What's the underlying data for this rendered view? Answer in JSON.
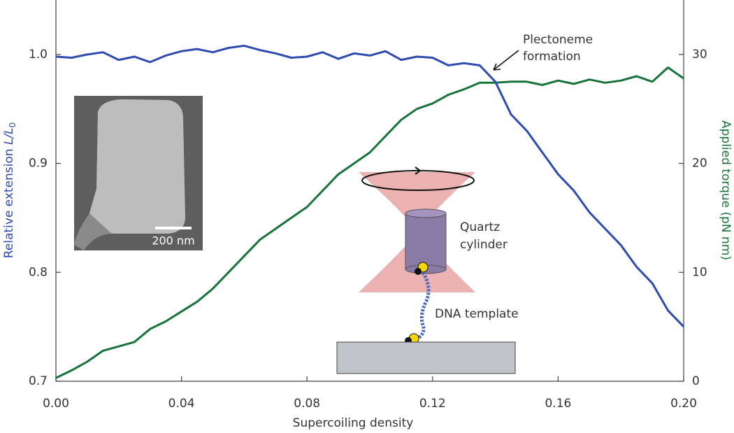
{
  "chart_data": {
    "type": "line",
    "x_label": "Supercoiling density",
    "y_label": "Relative extension ",
    "y_label_var": "L/L",
    "y_label_sub": "0",
    "y2_label": "Applied torque (pN nm)",
    "annotations": {
      "plectoneme": [
        "Plectoneme",
        "formation"
      ],
      "cylinder": [
        "Quartz",
        "cylinder"
      ],
      "dna": "DNA template",
      "scale_bar": "200 nm"
    },
    "x": [
      0,
      0.005,
      0.01,
      0.015,
      0.02,
      0.025,
      0.03,
      0.035,
      0.04,
      0.045,
      0.05,
      0.055,
      0.06,
      0.065,
      0.07,
      0.075,
      0.08,
      0.085,
      0.09,
      0.095,
      0.1,
      0.105,
      0.11,
      0.115,
      0.12,
      0.125,
      0.13,
      0.135,
      0.14,
      0.145,
      0.15,
      0.155,
      0.16,
      0.165,
      0.17,
      0.175,
      0.18,
      0.185,
      0.19,
      0.195,
      0.2
    ],
    "series": [
      {
        "name": "Relative extension",
        "color": "#2d4bb0",
        "axis": "y",
        "values": [
          0.998,
          0.997,
          1.0,
          1.002,
          0.995,
          0.998,
          0.993,
          0.999,
          1.003,
          1.005,
          1.002,
          1.006,
          1.008,
          1.004,
          1.001,
          0.997,
          0.998,
          1.002,
          0.996,
          1.001,
          0.999,
          1.003,
          0.995,
          0.998,
          0.997,
          0.99,
          0.992,
          0.99,
          0.975,
          0.945,
          0.93,
          0.91,
          0.89,
          0.875,
          0.855,
          0.84,
          0.825,
          0.805,
          0.79,
          0.765,
          0.75
        ]
      },
      {
        "name": "Applied torque",
        "color": "#17733a",
        "axis": "y2",
        "values": [
          0.3,
          1,
          1.8,
          2.8,
          3.2,
          3.6,
          4.8,
          5.5,
          6.4,
          7.3,
          8.5,
          10,
          11.5,
          13,
          14,
          15,
          16,
          17.5,
          19,
          20,
          21,
          22.5,
          24,
          25,
          25.5,
          26.3,
          26.8,
          27.4,
          27.4,
          27.5,
          27.5,
          27.2,
          27.6,
          27.3,
          27.7,
          27.4,
          27.6,
          28,
          27.5,
          28.8,
          27.8
        ]
      }
    ],
    "xlim": [
      0,
      0.2
    ],
    "xticks": [
      {
        "value": 0,
        "label": "0.00"
      },
      {
        "value": 0.04,
        "label": "0.04"
      },
      {
        "value": 0.08,
        "label": "0.08"
      },
      {
        "value": 0.12,
        "label": "0.12"
      },
      {
        "value": 0.16,
        "label": "0.16"
      },
      {
        "value": 0.2,
        "label": "0.20"
      }
    ],
    "ylim": [
      0.7,
      1.05
    ],
    "yticks": [
      0.7,
      0.8,
      0.9,
      {
        "value": 1.0,
        "label": "1.0"
      }
    ],
    "y2lim": [
      0,
      35
    ],
    "y2ticks": [
      0,
      10,
      20,
      30
    ],
    "grid": false
  }
}
